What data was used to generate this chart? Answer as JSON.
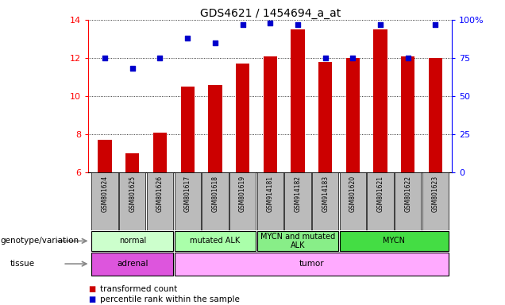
{
  "title": "GDS4621 / 1454694_a_at",
  "samples": [
    "GSM801624",
    "GSM801625",
    "GSM801626",
    "GSM801617",
    "GSM801618",
    "GSM801619",
    "GSM914181",
    "GSM914182",
    "GSM914183",
    "GSM801620",
    "GSM801621",
    "GSM801622",
    "GSM801623"
  ],
  "bar_values": [
    7.7,
    7.0,
    8.1,
    10.5,
    10.6,
    11.7,
    12.1,
    13.5,
    11.8,
    12.0,
    13.5,
    12.1,
    12.0
  ],
  "dot_values": [
    75,
    68,
    75,
    88,
    85,
    97,
    98,
    97,
    75,
    75,
    97,
    75,
    97
  ],
  "ylim_left": [
    6,
    14
  ],
  "ylim_right": [
    0,
    100
  ],
  "yticks_left": [
    6,
    8,
    10,
    12,
    14
  ],
  "yticks_right": [
    0,
    25,
    50,
    75,
    100
  ],
  "bar_color": "#cc0000",
  "dot_color": "#0000cc",
  "genotype_groups": [
    {
      "label": "normal",
      "start": 0,
      "end": 3,
      "color": "#ccffcc"
    },
    {
      "label": "mutated ALK",
      "start": 3,
      "end": 6,
      "color": "#aaffaa"
    },
    {
      "label": "MYCN and mutated\nALK",
      "start": 6,
      "end": 9,
      "color": "#88ee88"
    },
    {
      "label": "MYCN",
      "start": 9,
      "end": 13,
      "color": "#44dd44"
    }
  ],
  "tissue_groups": [
    {
      "label": "adrenal",
      "start": 0,
      "end": 3,
      "color": "#dd55dd"
    },
    {
      "label": "tumor",
      "start": 3,
      "end": 13,
      "color": "#ffaaff"
    }
  ],
  "genotype_label": "genotype/variation",
  "tissue_label": "tissue",
  "legend_bar": "transformed count",
  "legend_dot": "percentile rank within the sample",
  "tick_bg_color": "#bbbbbb",
  "bar_width": 0.5
}
